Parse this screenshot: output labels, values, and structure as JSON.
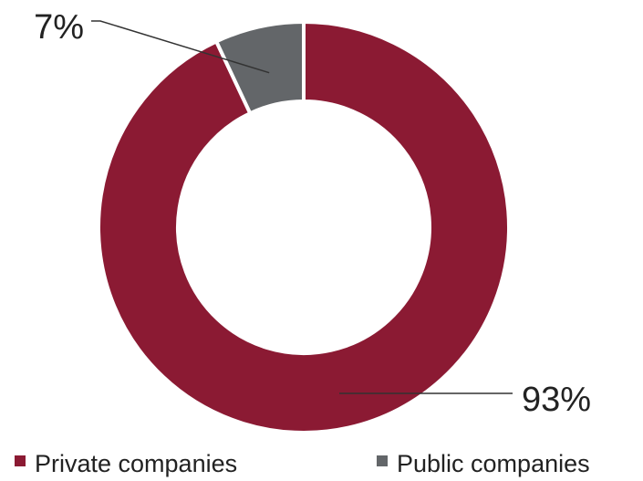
{
  "chart_data": {
    "type": "pie",
    "variant": "donut",
    "categories": [
      "Private companies",
      "Public companies"
    ],
    "values": [
      93,
      7
    ],
    "unit": "%",
    "colors": [
      "#8b1a33",
      "#636669"
    ],
    "data_labels": [
      "93%",
      "7%"
    ],
    "legend": {
      "placement": "bottom",
      "entries": [
        "Private companies",
        "Public companies"
      ]
    },
    "start_angle": "12 o'clock",
    "direction": "clockwise",
    "leader_lines": true
  }
}
